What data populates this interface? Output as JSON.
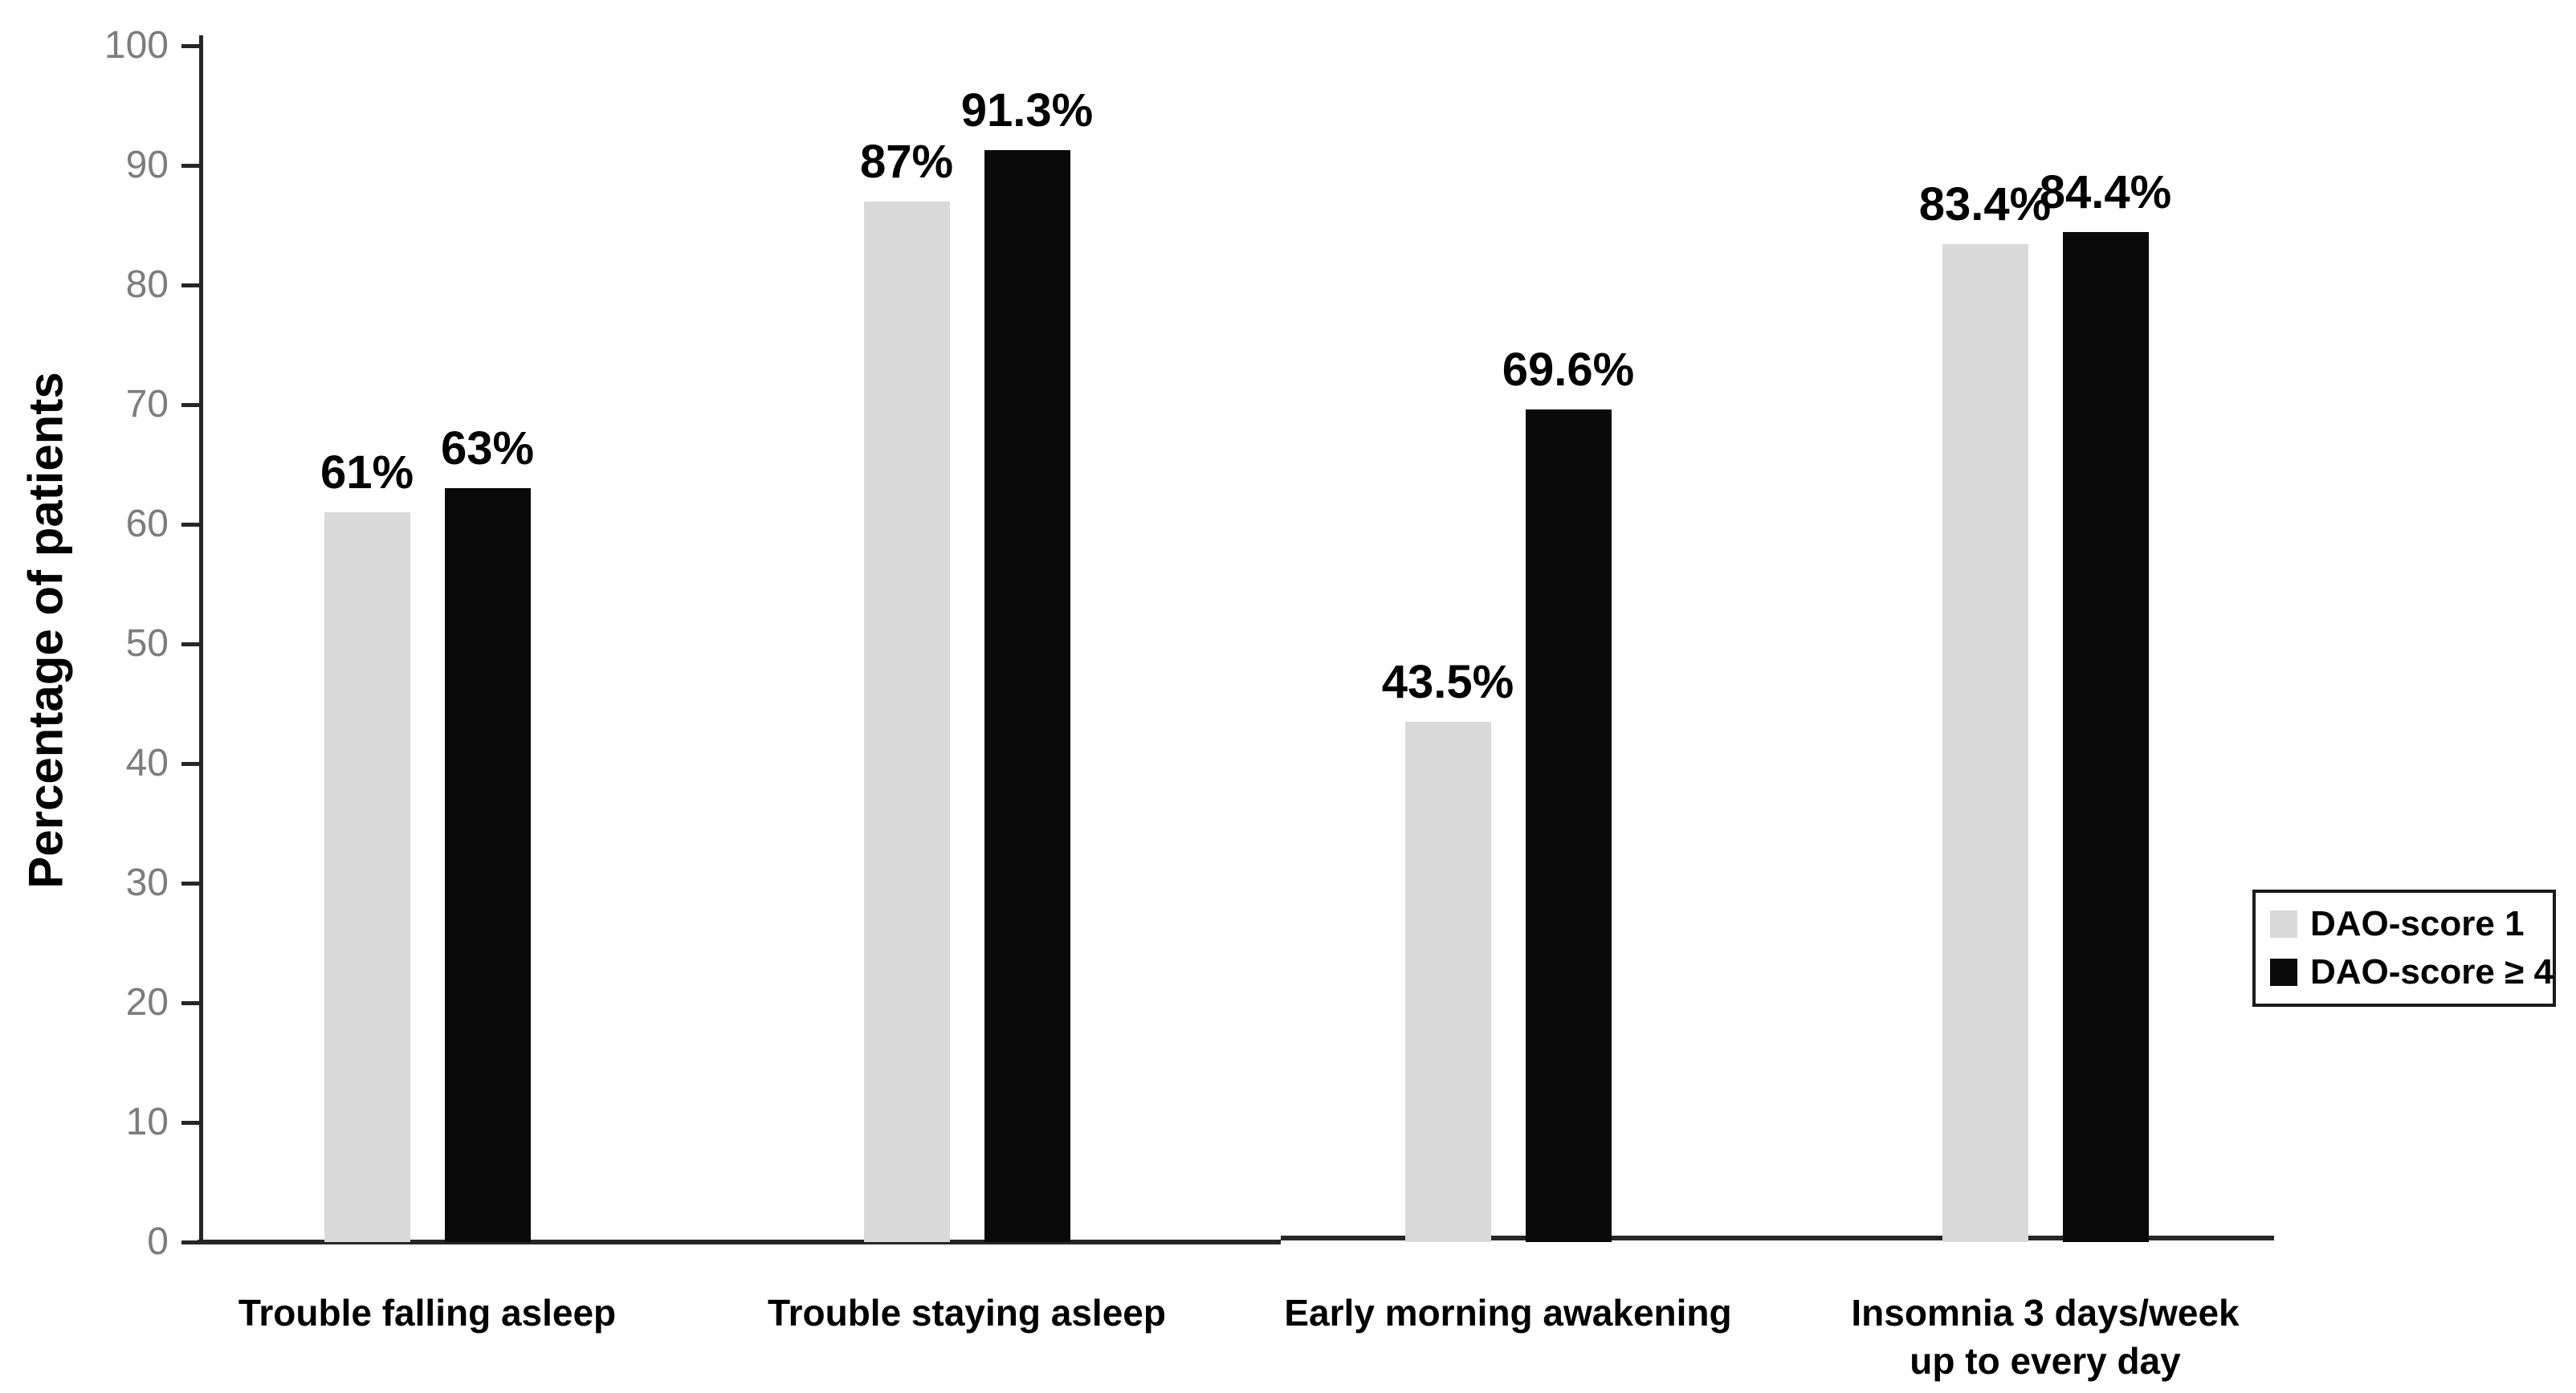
{
  "chart_data": {
    "type": "bar",
    "title": "",
    "xlabel": "",
    "ylabel": "Percentage of patients",
    "ylim": [
      0,
      100
    ],
    "yticks": [
      0,
      10,
      20,
      30,
      40,
      50,
      60,
      70,
      80,
      90,
      100
    ],
    "grid": false,
    "legend_position": "right",
    "legend_border": true,
    "categories": [
      "Trouble falling asleep",
      "Trouble staying asleep",
      "Early morning awakening",
      "Insomnia 3 days/week\nup to every day"
    ],
    "series": [
      {
        "name": "DAO-score 1",
        "color": "#d9d9d9",
        "values": [
          61,
          87,
          43.5,
          83.4
        ],
        "labels": [
          "61%",
          "87%",
          "43.5%",
          "83.4%"
        ]
      },
      {
        "name": "DAO-score ≥ 4",
        "color": "#0a0a0a",
        "values": [
          63,
          91.3,
          69.6,
          84.4
        ],
        "labels": [
          "63%",
          "91.3%",
          "69.6%",
          "84.4%"
        ]
      }
    ]
  }
}
